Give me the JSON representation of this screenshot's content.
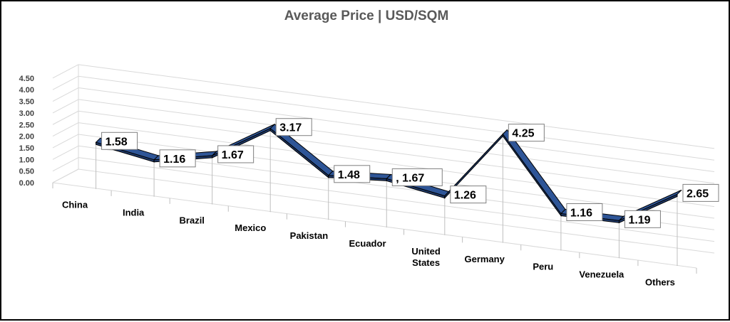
{
  "chart_data": {
    "type": "line",
    "title": "Average Price | USD/SQM",
    "categories": [
      "China",
      "India",
      "Brazil",
      "Mexico",
      "Pakistan",
      "Ecuador",
      "United States",
      "Germany",
      "Peru",
      "Venezuela",
      "Others"
    ],
    "category_lines": [
      [
        "China"
      ],
      [
        "India"
      ],
      [
        "Brazil"
      ],
      [
        "Mexico"
      ],
      [
        "Pakistan"
      ],
      [
        "Ecuador"
      ],
      [
        "United",
        "States"
      ],
      [
        "Germany"
      ],
      [
        "Peru"
      ],
      [
        "Venezuela"
      ],
      [
        "Others"
      ]
    ],
    "values": [
      1.58,
      1.16,
      1.67,
      3.17,
      1.48,
      1.67,
      1.26,
      4.25,
      1.16,
      1.19,
      2.65
    ],
    "data_labels": [
      "1.58",
      "1.16",
      "1.67",
      "3.17",
      "1.48",
      ", 1.67",
      "1.26",
      "4.25",
      "1.16",
      "1.19",
      "2.65"
    ],
    "yticks": [
      "0.00",
      "0.50",
      "1.00",
      "1.50",
      "2.00",
      "2.50",
      "3.00",
      "3.50",
      "4.00",
      "4.50"
    ],
    "ylim": [
      0,
      4.5
    ],
    "grid": true,
    "legend": "none",
    "style": "3d ribbon",
    "colors": {
      "ribbon_top": "#2E5597",
      "ribbon_front": "#1F3A6B",
      "ribbon_edge": "#000000",
      "grid": "#D9D9D9"
    }
  }
}
